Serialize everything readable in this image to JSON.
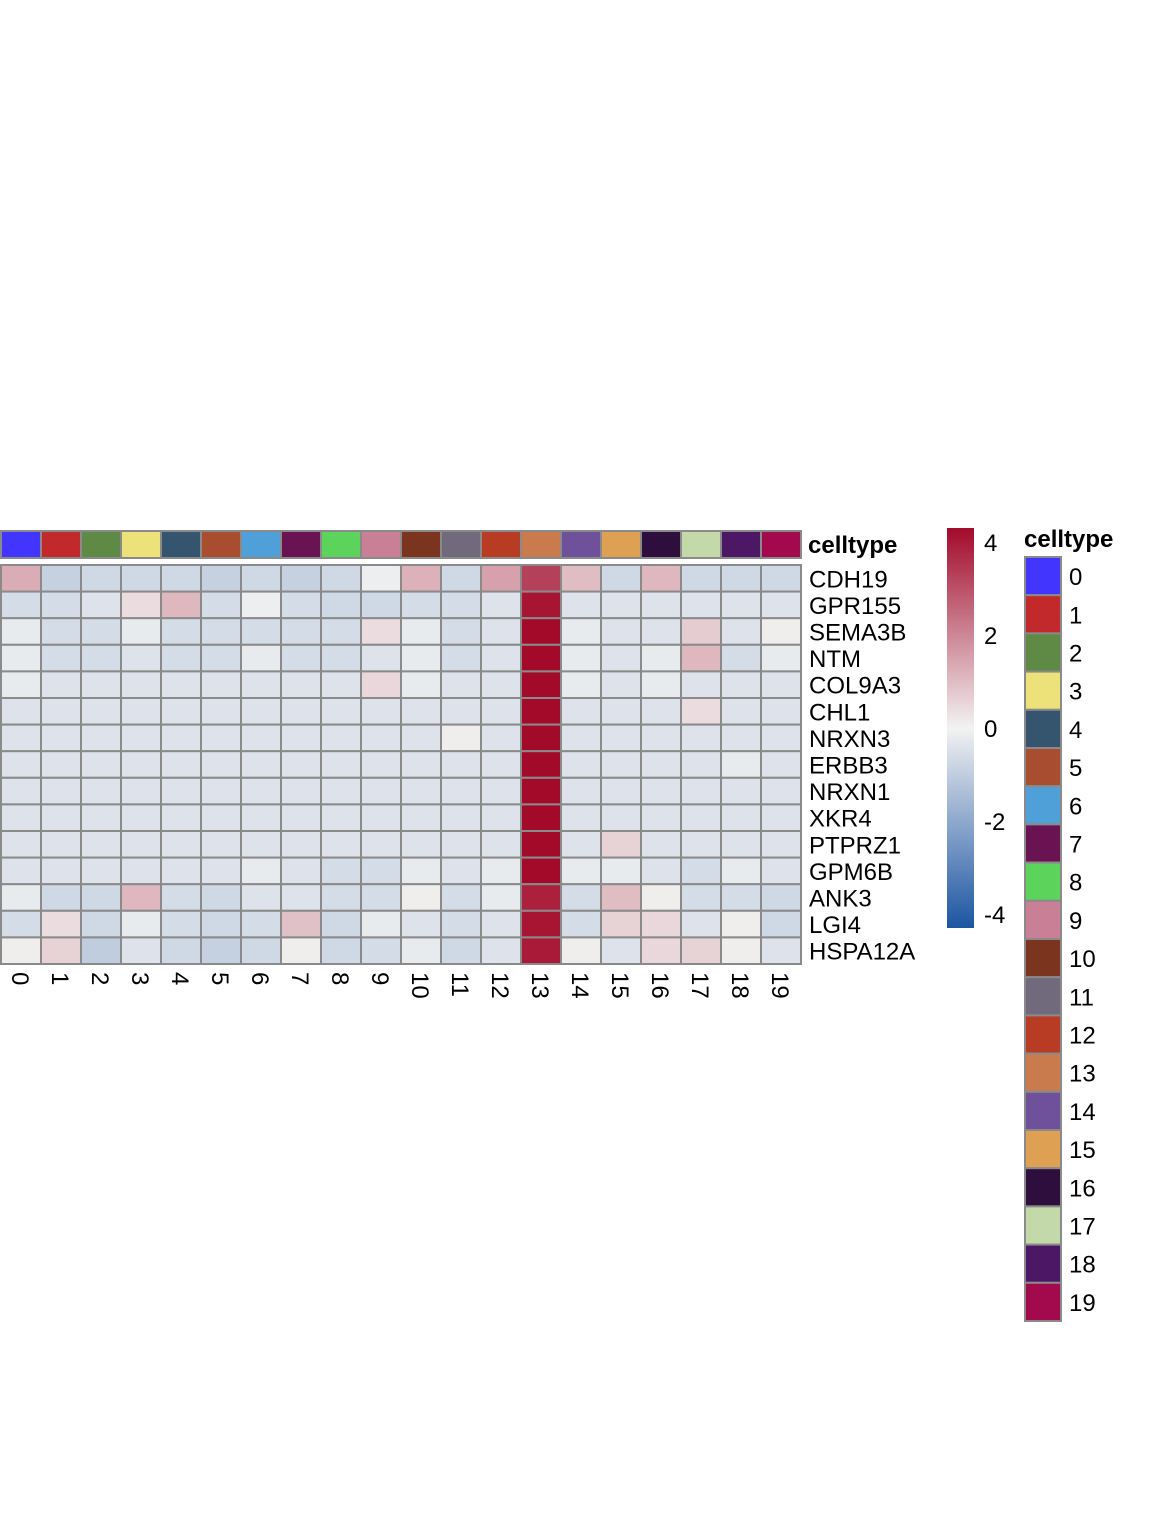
{
  "chart_data": {
    "type": "heatmap",
    "rows": [
      "CDH19",
      "GPR155",
      "SEMA3B",
      "NTM",
      "COL9A3",
      "CHL1",
      "NRXN3",
      "ERBB3",
      "NRXN1",
      "XKR4",
      "PTPRZ1",
      "GPM6B",
      "ANK3",
      "LGI4",
      "HSPA12A"
    ],
    "columns": [
      "0",
      "1",
      "2",
      "3",
      "4",
      "5",
      "6",
      "7",
      "8",
      "9",
      "10",
      "11",
      "12",
      "13",
      "14",
      "15",
      "16",
      "17",
      "18",
      "19"
    ],
    "values": [
      [
        1.3,
        -0.9,
        -0.7,
        -0.7,
        -0.7,
        -0.9,
        -0.7,
        -0.9,
        -0.7,
        -0.1,
        1.2,
        -0.7,
        1.5,
        3.3,
        1.0,
        -0.7,
        1.1,
        -0.7,
        -0.7,
        -0.7
      ],
      [
        -0.6,
        -0.6,
        -0.4,
        0.4,
        1.1,
        -0.6,
        -0.1,
        -0.6,
        -0.7,
        -0.7,
        -0.6,
        -0.6,
        -0.4,
        4.1,
        -0.4,
        -0.4,
        -0.4,
        -0.4,
        -0.4,
        -0.4
      ],
      [
        -0.2,
        -0.6,
        -0.6,
        -0.2,
        -0.6,
        -0.6,
        -0.6,
        -0.6,
        -0.6,
        0.4,
        -0.2,
        -0.6,
        -0.4,
        4.3,
        -0.2,
        -0.4,
        -0.4,
        0.7,
        -0.4,
        0.1
      ],
      [
        -0.2,
        -0.6,
        -0.6,
        -0.4,
        -0.6,
        -0.6,
        -0.2,
        -0.6,
        -0.6,
        -0.4,
        -0.2,
        -0.6,
        -0.4,
        4.3,
        -0.2,
        -0.4,
        -0.2,
        1.1,
        -0.6,
        -0.2
      ],
      [
        -0.2,
        -0.4,
        -0.4,
        -0.4,
        -0.4,
        -0.4,
        -0.4,
        -0.4,
        -0.4,
        0.5,
        -0.2,
        -0.4,
        -0.4,
        4.3,
        -0.2,
        -0.4,
        -0.2,
        -0.4,
        -0.4,
        -0.4
      ],
      [
        -0.4,
        -0.4,
        -0.4,
        -0.4,
        -0.4,
        -0.4,
        -0.4,
        -0.4,
        -0.4,
        -0.4,
        -0.4,
        -0.4,
        -0.4,
        4.3,
        -0.4,
        -0.4,
        -0.4,
        0.4,
        -0.4,
        -0.4
      ],
      [
        -0.4,
        -0.4,
        -0.4,
        -0.4,
        -0.4,
        -0.4,
        -0.4,
        -0.4,
        -0.4,
        -0.4,
        -0.4,
        0.1,
        -0.4,
        4.3,
        -0.4,
        -0.4,
        -0.4,
        -0.4,
        -0.4,
        -0.4
      ],
      [
        -0.4,
        -0.4,
        -0.4,
        -0.4,
        -0.4,
        -0.4,
        -0.4,
        -0.4,
        -0.4,
        -0.4,
        -0.4,
        -0.4,
        -0.4,
        4.3,
        -0.4,
        -0.4,
        -0.4,
        -0.4,
        -0.2,
        -0.4
      ],
      [
        -0.4,
        -0.4,
        -0.4,
        -0.4,
        -0.4,
        -0.4,
        -0.4,
        -0.4,
        -0.4,
        -0.4,
        -0.4,
        -0.4,
        -0.4,
        4.3,
        -0.4,
        -0.4,
        -0.4,
        -0.4,
        -0.4,
        -0.4
      ],
      [
        -0.4,
        -0.4,
        -0.4,
        -0.4,
        -0.4,
        -0.4,
        -0.4,
        -0.4,
        -0.4,
        -0.4,
        -0.4,
        -0.4,
        -0.4,
        4.3,
        -0.4,
        -0.4,
        -0.4,
        -0.4,
        -0.4,
        -0.4
      ],
      [
        -0.4,
        -0.4,
        -0.4,
        -0.4,
        -0.4,
        -0.4,
        -0.4,
        -0.4,
        -0.4,
        -0.4,
        -0.4,
        -0.4,
        -0.4,
        4.3,
        -0.4,
        0.6,
        -0.4,
        -0.4,
        -0.4,
        -0.4
      ],
      [
        -0.4,
        -0.4,
        -0.4,
        -0.4,
        -0.4,
        -0.4,
        -0.2,
        -0.4,
        -0.6,
        -0.6,
        -0.2,
        -0.4,
        -0.2,
        4.3,
        -0.2,
        -0.2,
        -0.4,
        -0.6,
        -0.2,
        -0.4
      ],
      [
        -0.2,
        -0.7,
        -0.7,
        1.1,
        -0.6,
        -0.7,
        -0.4,
        -0.4,
        -0.6,
        -0.6,
        0.1,
        -0.6,
        -0.2,
        3.9,
        -0.6,
        1.0,
        0.1,
        -0.6,
        -0.6,
        -0.7
      ],
      [
        -0.6,
        0.4,
        -0.7,
        -0.2,
        -0.6,
        -0.7,
        -0.6,
        0.9,
        -0.7,
        -0.2,
        -0.4,
        -0.6,
        -0.4,
        4.1,
        -0.6,
        0.6,
        0.5,
        -0.4,
        0.1,
        -0.7
      ],
      [
        0.1,
        0.6,
        -1.0,
        -0.4,
        -0.7,
        -0.9,
        -0.7,
        0.1,
        -0.7,
        -0.6,
        -0.2,
        -0.7,
        -0.4,
        4.0,
        0.1,
        -0.4,
        0.5,
        0.6,
        0.1,
        -0.4
      ]
    ],
    "annotation": {
      "title": "celltype",
      "colors": [
        "#4235fe",
        "#c1292b",
        "#5e8a45",
        "#ede27a",
        "#35546d",
        "#a84d2f",
        "#4fa0d8",
        "#6a1352",
        "#5cd35a",
        "#c97f95",
        "#7b341e",
        "#716a7c",
        "#b83c24",
        "#c97b4e",
        "#6e519a",
        "#dea053",
        "#2d0e3c",
        "#c3d9a9",
        "#4c1765",
        "#a30a4e"
      ]
    },
    "colorbar": {
      "ticks": [
        4,
        2,
        0,
        -2,
        -4
      ],
      "range": [
        -4.3,
        4.3
      ],
      "colors": {
        "low": "#1c55a2",
        "mid": "#f2f2f2",
        "high": "#a30a2a"
      }
    }
  }
}
